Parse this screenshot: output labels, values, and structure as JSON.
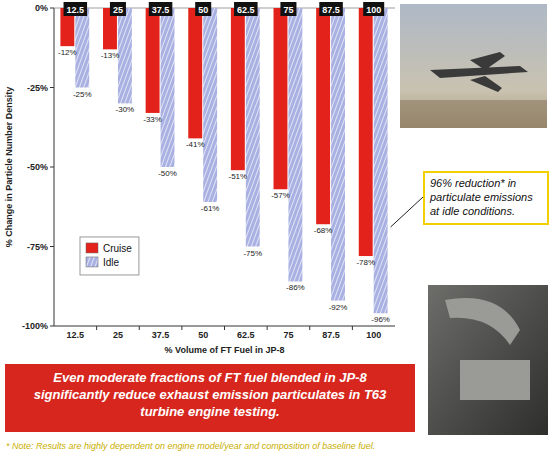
{
  "chart_data": {
    "type": "bar",
    "categories": [
      "12.5",
      "25",
      "37.5",
      "50",
      "62.5",
      "75",
      "87.5",
      "100"
    ],
    "series": [
      {
        "name": "Cruise",
        "color": "#e3231b",
        "values": [
          -12,
          -13,
          -33,
          -41,
          -51,
          -57,
          -68,
          -78
        ],
        "value_labels": [
          "-12%",
          "-13%",
          "-33%",
          "-41%",
          "-51%",
          "-57%",
          "-68%",
          "-78%"
        ]
      },
      {
        "name": "Idle",
        "color": "#a9b1e2",
        "values": [
          -25,
          -30,
          -50,
          -61,
          -75,
          -86,
          -92,
          -96
        ],
        "value_labels": [
          "-25%",
          "-30%",
          "-50%",
          "-61%",
          "-75%",
          "-86%",
          "-92%",
          "-96%"
        ]
      }
    ],
    "ylim": [
      -100,
      0
    ],
    "yticks": [
      {
        "value": -100,
        "label": "-100%"
      },
      {
        "value": -75,
        "label": "-75%"
      },
      {
        "value": -50,
        "label": "-50%"
      },
      {
        "value": -25,
        "label": "-25%"
      },
      {
        "value": 0,
        "label": "0%"
      }
    ],
    "y_label": "% Change in Particle Number Density",
    "x_label": "% Volume of FT Fuel in JP-8",
    "legend": "lower-left",
    "data_labels": true,
    "grid": false,
    "annotations": [
      {
        "text": "96% reduction* in particulate emissions at idle conditions."
      },
      {
        "text": "Even moderate fractions of FT fuel blended in JP-8 significantly reduce exhaust emission particulates in T63 turbine engine testing."
      },
      {
        "text": "* Note:  Results are highly dependent on engine model/year and composition of baseline fuel."
      }
    ]
  }
}
